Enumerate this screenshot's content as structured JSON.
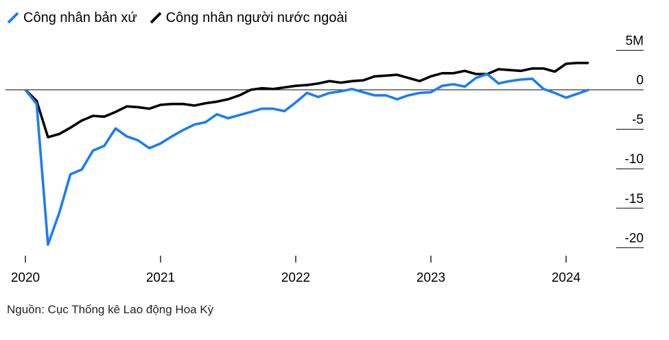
{
  "chart_data": {
    "type": "line",
    "title": "",
    "ylabel": "",
    "xlabel": "",
    "ylim": [
      -20,
      5
    ],
    "y_ticks": [
      {
        "value": 5,
        "label": "5M"
      },
      {
        "value": 0,
        "label": "0"
      },
      {
        "value": -5,
        "label": "-5"
      },
      {
        "value": -10,
        "label": "-10"
      },
      {
        "value": -15,
        "label": "-15"
      },
      {
        "value": -20,
        "label": "-20"
      }
    ],
    "x_ticks": [
      {
        "value": 2020,
        "label": "2020"
      },
      {
        "value": 2021,
        "label": "2021"
      },
      {
        "value": 2022,
        "label": "2022"
      },
      {
        "value": 2023,
        "label": "2023"
      },
      {
        "value": 2024,
        "label": "2024"
      }
    ],
    "zero_line": true,
    "legend_position": "top-left",
    "series": [
      {
        "name": "Công nhân bản xứ",
        "color": "#1a7cf5",
        "x": [
          2020.0,
          2020.083,
          2020.167,
          2020.25,
          2020.333,
          2020.417,
          2020.5,
          2020.583,
          2020.667,
          2020.75,
          2020.833,
          2020.917,
          2021.0,
          2021.083,
          2021.167,
          2021.25,
          2021.333,
          2021.417,
          2021.5,
          2021.583,
          2021.667,
          2021.75,
          2021.833,
          2021.917,
          2022.0,
          2022.083,
          2022.167,
          2022.25,
          2022.333,
          2022.417,
          2022.5,
          2022.583,
          2022.667,
          2022.75,
          2022.833,
          2022.917,
          2023.0,
          2023.083,
          2023.167,
          2023.25,
          2023.333,
          2023.417,
          2023.5,
          2023.583,
          2023.667,
          2023.75,
          2023.833,
          2023.917,
          2024.0,
          2024.083,
          2024.167
        ],
        "values": [
          0,
          -1.8,
          -19.6,
          -15.6,
          -10.7,
          -10.1,
          -7.7,
          -7.1,
          -4.9,
          -5.9,
          -6.4,
          -7.4,
          -6.8,
          -5.9,
          -5.1,
          -4.4,
          -4.1,
          -3.1,
          -3.6,
          -3.2,
          -2.8,
          -2.4,
          -2.4,
          -2.7,
          -1.6,
          -0.4,
          -0.9,
          -0.4,
          -0.2,
          0.1,
          -0.3,
          -0.7,
          -0.7,
          -1.2,
          -0.7,
          -0.4,
          -0.3,
          0.5,
          0.7,
          0.4,
          1.5,
          2.0,
          0.8,
          1.1,
          1.3,
          1.4,
          0.1,
          -0.4,
          -1.0,
          -0.5,
          0.0
        ]
      },
      {
        "name": "Công nhân người nước ngoài",
        "color": "#000000",
        "x": [
          2020.0,
          2020.083,
          2020.167,
          2020.25,
          2020.333,
          2020.417,
          2020.5,
          2020.583,
          2020.667,
          2020.75,
          2020.833,
          2020.917,
          2021.0,
          2021.083,
          2021.167,
          2021.25,
          2021.333,
          2021.417,
          2021.5,
          2021.583,
          2021.667,
          2021.75,
          2021.833,
          2021.917,
          2022.0,
          2022.083,
          2022.167,
          2022.25,
          2022.333,
          2022.417,
          2022.5,
          2022.583,
          2022.667,
          2022.75,
          2022.833,
          2022.917,
          2023.0,
          2023.083,
          2023.167,
          2023.25,
          2023.333,
          2023.417,
          2023.5,
          2023.583,
          2023.667,
          2023.75,
          2023.833,
          2023.917,
          2024.0,
          2024.083,
          2024.167
        ],
        "values": [
          0,
          -1.4,
          -6.0,
          -5.6,
          -4.8,
          -3.9,
          -3.3,
          -3.4,
          -2.8,
          -2.1,
          -2.2,
          -2.4,
          -1.9,
          -1.8,
          -1.8,
          -2.0,
          -1.7,
          -1.5,
          -1.2,
          -0.7,
          0.0,
          0.2,
          0.1,
          0.3,
          0.5,
          0.6,
          0.8,
          1.1,
          0.9,
          1.1,
          1.2,
          1.7,
          1.8,
          1.9,
          1.5,
          1.1,
          1.7,
          2.1,
          2.1,
          2.4,
          2.0,
          2.0,
          2.6,
          2.5,
          2.4,
          2.7,
          2.7,
          2.3,
          3.3,
          3.4,
          3.4
        ]
      }
    ]
  },
  "source": "Nguồn: Cục Thống kê Lao động Hoa Kỳ"
}
